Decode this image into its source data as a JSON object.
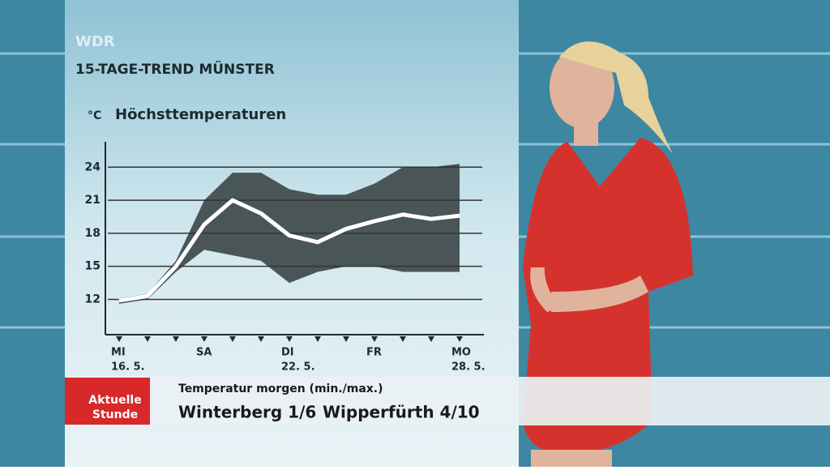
{
  "brand": "WDR",
  "heading": "15-TAGE-TREND MÜNSTER",
  "chart_data": {
    "type": "line",
    "unit": "°C",
    "title": "Höchsttemperaturen",
    "categories": [
      "MI",
      null,
      null,
      "SA",
      null,
      null,
      "DI",
      null,
      null,
      "FR",
      null,
      null,
      "MO"
    ],
    "dates": [
      "16. 5.",
      null,
      null,
      null,
      null,
      null,
      "22. 5.",
      null,
      null,
      null,
      null,
      null,
      "28. 5."
    ],
    "values": [
      11.9,
      12.3,
      15,
      18.8,
      21,
      19.8,
      17.8,
      17.2,
      18.4,
      19.1,
      19.7,
      19.3,
      19.6
    ],
    "color": "#ffffff",
    "band_upper": [
      12.1,
      12.5,
      15.5,
      21,
      23.5,
      23.5,
      22,
      21.5,
      21.5,
      22.5,
      24,
      24,
      24.3
    ],
    "band_lower": [
      11.6,
      12,
      14.5,
      16.5,
      16,
      15.5,
      13.5,
      14.5,
      15,
      15,
      14.5,
      14.5,
      14.5
    ],
    "band_color": "#4a5558",
    "ylim": [
      8.8,
      26.3
    ],
    "yticks": [
      12,
      15,
      18,
      21,
      24
    ],
    "grid": true
  },
  "ticker": {
    "logo": [
      "Aktuelle",
      "Stunde"
    ],
    "caption": "Temperatur morgen (min./max.)",
    "items": [
      "Winterberg 1/6",
      "Wipperfürth 4/10"
    ]
  }
}
